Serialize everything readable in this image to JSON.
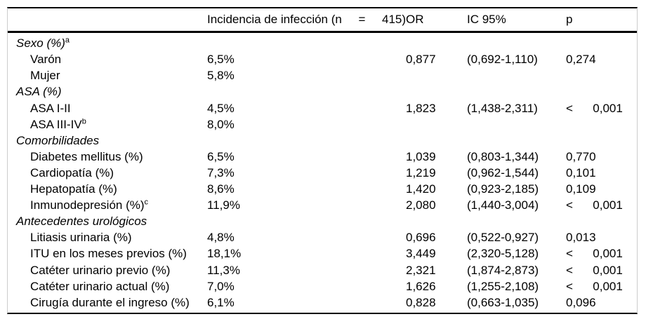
{
  "colors": {
    "text": "#000000",
    "rule": "#000000",
    "edge_line": "#cccccc"
  },
  "table": {
    "header": {
      "variable": "",
      "incidence": "Incidencia de infección (n     =     415)",
      "or": "OR",
      "ci": "IC 95%",
      "p": "p"
    },
    "rows": [
      {
        "type": "section",
        "label": "Sexo (%)",
        "sup": "a"
      },
      {
        "type": "item",
        "label": "Varón",
        "incidence": "6,5%",
        "or": "0,877",
        "ci": "(0,692-1,110)",
        "p": "0,274"
      },
      {
        "type": "item",
        "label": "Mujer",
        "incidence": "5,8%",
        "or": "",
        "ci": "",
        "p": ""
      },
      {
        "type": "section",
        "label": "ASA (%)"
      },
      {
        "type": "item",
        "label": "ASA I-II",
        "incidence": "4,5%",
        "or": "1,823",
        "ci": "(1,438-2,311)",
        "p": "<      0,001"
      },
      {
        "type": "item",
        "label": "ASA III-IV",
        "sup": "b",
        "incidence": "8,0%",
        "or": "",
        "ci": "",
        "p": ""
      },
      {
        "type": "section",
        "label": "Comorbilidades"
      },
      {
        "type": "item",
        "label": "Diabetes mellitus (%)",
        "incidence": "6,5%",
        "or": "1,039",
        "ci": "(0,803-1,344)",
        "p": "0,770"
      },
      {
        "type": "item",
        "label": "Cardiopatía (%)",
        "incidence": "7,3%",
        "or": "1,219",
        "ci": "(0,962-1,544)",
        "p": "0,101"
      },
      {
        "type": "item",
        "label": "Hepatopatía (%)",
        "incidence": "8,6%",
        "or": "1,420",
        "ci": "(0,923-2,185)",
        "p": "0,109"
      },
      {
        "type": "item",
        "label": "Inmunodepresión (%)",
        "sup": "c",
        "incidence": "11,9%",
        "or": "2,080",
        "ci": "(1,440-3,004)",
        "p": "<      0,001"
      },
      {
        "type": "section",
        "label": "Antecedentes urológicos"
      },
      {
        "type": "item",
        "label": "Litiasis urinaria (%)",
        "incidence": "4,8%",
        "or": "0,696",
        "ci": "(0,522-0,927)",
        "p": "0,013"
      },
      {
        "type": "item",
        "label": "ITU en los meses previos (%)",
        "incidence": "18,1%",
        "or": "3,449",
        "ci": "(2,320-5,128)",
        "p": "<      0,001"
      },
      {
        "type": "item",
        "label": "Catéter urinario previo (%)",
        "incidence": "11,3%",
        "or": "2,321",
        "ci": "(1,874-2,873)",
        "p": "<      0,001"
      },
      {
        "type": "item",
        "label": "Catéter urinario actual (%)",
        "incidence": "7,0%",
        "or": "1,626",
        "ci": "(1,255-2,108)",
        "p": "<      0,001"
      },
      {
        "type": "item",
        "label": "Cirugía durante el ingreso (%)",
        "incidence": "6,1%",
        "or": "0,828",
        "ci": "(0,663-1,035)",
        "p": "0,096"
      }
    ]
  }
}
